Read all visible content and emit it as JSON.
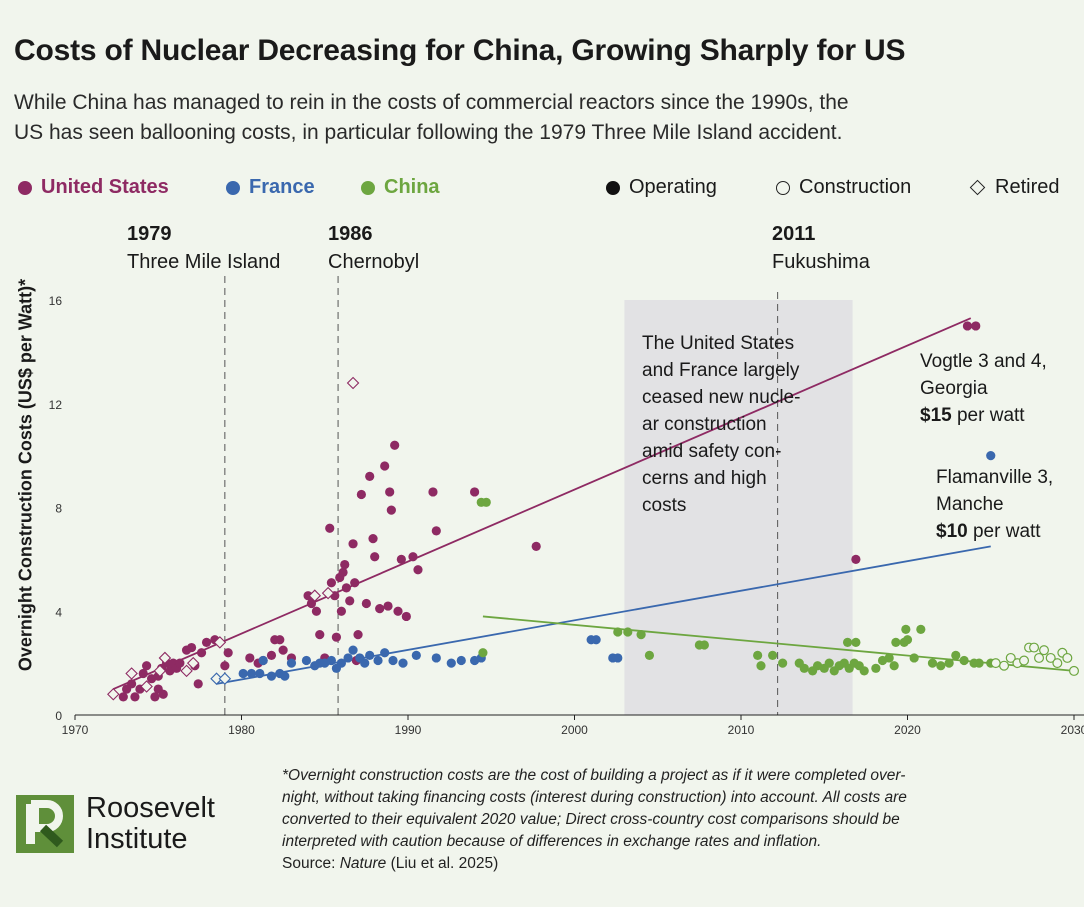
{
  "title": "Costs of Nuclear Decreasing for China, Growing Sharply for US",
  "subtitle_lines": [
    "While China has managed to rein in the costs of commercial reactors since the 1990s, the",
    "US has seen ballooning costs, in particular following the 1979 Three Mile Island accident."
  ],
  "legend": {
    "countries": [
      {
        "label": "United States",
        "color": "#8e2a63"
      },
      {
        "label": "France",
        "color": "#3a68ae"
      },
      {
        "label": "China",
        "color": "#6da640"
      }
    ],
    "status": [
      {
        "label": "Operating",
        "marker": "filled-circle"
      },
      {
        "label": "Construction",
        "marker": "open-circle"
      },
      {
        "label": "Retired",
        "marker": "open-diamond"
      }
    ]
  },
  "events": [
    {
      "year": "1979",
      "name": "Three Mile Island",
      "x": 1979
    },
    {
      "year": "1986",
      "name": "Chernobyl",
      "x": 1985.8
    },
    {
      "year": "2011",
      "name": "Fukushima",
      "x": 2012.2
    }
  ],
  "shaded_annotation_lines": [
    "The United States",
    "and France largely",
    "ceased new nucle-",
    "ar construction",
    "amid safety con-",
    "cerns and high",
    "costs"
  ],
  "callouts": {
    "vogtle": {
      "line1": "Vogtle 3 and 4,",
      "line2": "Georgia",
      "value": "$15",
      "unit": " per watt"
    },
    "flamanville": {
      "line1": "Flamanville 3,",
      "line2": "Manche",
      "value": "$10",
      "unit": " per watt"
    }
  },
  "footnote_lines": [
    "*Overnight construction costs are the cost of building a project as if it were completed over-",
    "night, without taking financing costs (interest during construction) into account. All costs are",
    "converted to their equivalent 2020 value; Direct cross-country cost comparisons should be",
    "interpreted with caution because of differences in exchange rates and inflation."
  ],
  "source": {
    "prefix": "Source: ",
    "publication": "Nature",
    "suffix": " (Liu et al. 2025)"
  },
  "logo": {
    "line1": "Roosevelt",
    "line2": "Institute",
    "color": "#5f8f3a"
  },
  "chart_data": {
    "type": "scatter",
    "ylabel": "Overnight Construction Costs (US$ per Watt)*",
    "xlabel": "",
    "xlim": [
      1970,
      2030
    ],
    "ylim": [
      0,
      16
    ],
    "x_ticks": [
      "1970",
      "1980",
      "1990",
      "2000",
      "2010",
      "2020",
      "2030"
    ],
    "y_ticks": [
      "0",
      "4",
      "8",
      "12",
      "16"
    ],
    "shaded_region": [
      2003,
      2016.7
    ],
    "series": [
      {
        "name": "United States",
        "color": "#8e2a63",
        "trendline": [
          [
            1972.3,
            1.0
          ],
          [
            2023.8,
            15.3
          ]
        ],
        "points": [
          [
            1972.9,
            0.7,
            "o"
          ],
          [
            1973.1,
            1.0,
            "o"
          ],
          [
            1973.4,
            1.2,
            "o"
          ],
          [
            1973.6,
            0.7,
            "o"
          ],
          [
            1973.9,
            1.0,
            "o"
          ],
          [
            1974.1,
            1.6,
            "o"
          ],
          [
            1974.3,
            1.9,
            "o"
          ],
          [
            1974.6,
            1.4,
            "o"
          ],
          [
            1974.8,
            0.7,
            "o"
          ],
          [
            1975.0,
            1.0,
            "o"
          ],
          [
            1975.0,
            1.5,
            "o"
          ],
          [
            1975.2,
            1.8,
            "o"
          ],
          [
            1975.3,
            0.8,
            "o"
          ],
          [
            1975.5,
            2.0,
            "o"
          ],
          [
            1975.7,
            1.7,
            "o"
          ],
          [
            1975.9,
            2.0,
            "o"
          ],
          [
            1976.1,
            1.8,
            "o"
          ],
          [
            1976.3,
            2.0,
            "o"
          ],
          [
            1976.7,
            2.5,
            "o"
          ],
          [
            1977.0,
            2.6,
            "o"
          ],
          [
            1977.2,
            1.9,
            "o"
          ],
          [
            1977.4,
            1.2,
            "o"
          ],
          [
            1977.6,
            2.4,
            "o"
          ],
          [
            1977.9,
            2.8,
            "o"
          ],
          [
            1978.4,
            2.9,
            "o"
          ],
          [
            1979.0,
            1.9,
            "o"
          ],
          [
            1979.2,
            2.4,
            "o"
          ],
          [
            1980.5,
            2.2,
            "o"
          ],
          [
            1981.0,
            2.0,
            "o"
          ],
          [
            1981.3,
            2.1,
            "o"
          ],
          [
            1981.8,
            2.3,
            "o"
          ],
          [
            1982.0,
            2.9,
            "o"
          ],
          [
            1982.3,
            2.9,
            "o"
          ],
          [
            1982.5,
            2.5,
            "o"
          ],
          [
            1983.0,
            2.2,
            "o"
          ],
          [
            1984.0,
            4.6,
            "o"
          ],
          [
            1984.2,
            4.3,
            "o"
          ],
          [
            1984.5,
            4.0,
            "o"
          ],
          [
            1984.7,
            3.1,
            "o"
          ],
          [
            1985.0,
            2.2,
            "o"
          ],
          [
            1985.3,
            7.2,
            "o"
          ],
          [
            1985.4,
            5.1,
            "o"
          ],
          [
            1985.6,
            4.6,
            "o"
          ],
          [
            1985.7,
            3.0,
            "o"
          ],
          [
            1985.9,
            5.3,
            "o"
          ],
          [
            1986.0,
            4.0,
            "o"
          ],
          [
            1986.1,
            5.5,
            "o"
          ],
          [
            1986.2,
            5.8,
            "o"
          ],
          [
            1986.3,
            4.9,
            "o"
          ],
          [
            1986.5,
            4.4,
            "o"
          ],
          [
            1986.7,
            6.6,
            "o"
          ],
          [
            1986.8,
            5.1,
            "o"
          ],
          [
            1986.9,
            2.1,
            "o"
          ],
          [
            1987.0,
            3.1,
            "o"
          ],
          [
            1987.2,
            8.5,
            "o"
          ],
          [
            1987.5,
            4.3,
            "o"
          ],
          [
            1987.7,
            9.2,
            "o"
          ],
          [
            1987.9,
            6.8,
            "o"
          ],
          [
            1988.0,
            6.1,
            "o"
          ],
          [
            1988.3,
            4.1,
            "o"
          ],
          [
            1988.6,
            9.6,
            "o"
          ],
          [
            1988.8,
            4.2,
            "o"
          ],
          [
            1988.9,
            8.6,
            "o"
          ],
          [
            1989.0,
            7.9,
            "o"
          ],
          [
            1989.2,
            10.4,
            "o"
          ],
          [
            1989.4,
            4.0,
            "o"
          ],
          [
            1989.6,
            6.0,
            "o"
          ],
          [
            1989.9,
            3.8,
            "o"
          ],
          [
            1990.3,
            6.1,
            "o"
          ],
          [
            1990.6,
            5.6,
            "o"
          ],
          [
            1991.5,
            8.6,
            "o"
          ],
          [
            1991.7,
            7.1,
            "o"
          ],
          [
            1994.0,
            8.6,
            "o"
          ],
          [
            1997.7,
            6.5,
            "o"
          ],
          [
            2016.9,
            6.0,
            "o"
          ],
          [
            2023.6,
            15.0,
            "o"
          ],
          [
            2024.1,
            15.0,
            "o"
          ],
          [
            1972.3,
            0.8,
            "d"
          ],
          [
            1973.4,
            1.6,
            "d"
          ],
          [
            1974.3,
            1.1,
            "d"
          ],
          [
            1975.1,
            1.7,
            "d"
          ],
          [
            1975.4,
            2.2,
            "d"
          ],
          [
            1976.7,
            1.7,
            "d"
          ],
          [
            1977.1,
            2.0,
            "d"
          ],
          [
            1978.7,
            2.8,
            "d"
          ],
          [
            1984.4,
            4.6,
            "d"
          ],
          [
            1985.2,
            4.7,
            "d"
          ],
          [
            1986.7,
            12.8,
            "d"
          ]
        ]
      },
      {
        "name": "France",
        "color": "#3a68ae",
        "trendline": [
          [
            1978.5,
            1.2
          ],
          [
            2025.0,
            6.5
          ]
        ],
        "points": [
          [
            1980.1,
            1.6,
            "o"
          ],
          [
            1980.6,
            1.6,
            "o"
          ],
          [
            1981.1,
            1.6,
            "o"
          ],
          [
            1981.3,
            2.1,
            "o"
          ],
          [
            1981.8,
            1.5,
            "o"
          ],
          [
            1982.3,
            1.6,
            "o"
          ],
          [
            1982.6,
            1.5,
            "o"
          ],
          [
            1983.0,
            2.0,
            "o"
          ],
          [
            1983.9,
            2.1,
            "o"
          ],
          [
            1984.4,
            1.9,
            "o"
          ],
          [
            1984.7,
            2.0,
            "o"
          ],
          [
            1985.0,
            2.0,
            "o"
          ],
          [
            1985.4,
            2.1,
            "o"
          ],
          [
            1985.7,
            1.8,
            "o"
          ],
          [
            1986.0,
            2.0,
            "o"
          ],
          [
            1986.4,
            2.2,
            "o"
          ],
          [
            1986.7,
            2.5,
            "o"
          ],
          [
            1987.1,
            2.2,
            "o"
          ],
          [
            1987.4,
            2.0,
            "o"
          ],
          [
            1987.7,
            2.3,
            "o"
          ],
          [
            1988.2,
            2.1,
            "o"
          ],
          [
            1988.6,
            2.4,
            "o"
          ],
          [
            1989.1,
            2.1,
            "o"
          ],
          [
            1989.7,
            2.0,
            "o"
          ],
          [
            1990.5,
            2.3,
            "o"
          ],
          [
            1991.7,
            2.2,
            "o"
          ],
          [
            1992.6,
            2.0,
            "o"
          ],
          [
            1993.2,
            2.1,
            "o"
          ],
          [
            1994.0,
            2.1,
            "o"
          ],
          [
            1994.4,
            2.2,
            "o"
          ],
          [
            2001.0,
            2.9,
            "o"
          ],
          [
            2001.3,
            2.9,
            "o"
          ],
          [
            2002.3,
            2.2,
            "o"
          ],
          [
            2002.6,
            2.2,
            "o"
          ],
          [
            2025.0,
            10.0,
            "o"
          ],
          [
            1978.5,
            1.4,
            "d"
          ],
          [
            1979.0,
            1.4,
            "d"
          ]
        ]
      },
      {
        "name": "China",
        "color": "#6da640",
        "trendline": [
          [
            1994.5,
            3.8
          ],
          [
            2030.0,
            1.7
          ]
        ],
        "points": [
          [
            1994.4,
            8.2,
            "o"
          ],
          [
            1994.7,
            8.2,
            "o"
          ],
          [
            1994.5,
            2.4,
            "o"
          ],
          [
            2002.6,
            3.2,
            "o"
          ],
          [
            2003.2,
            3.2,
            "o"
          ],
          [
            2004.0,
            3.1,
            "o"
          ],
          [
            2004.5,
            2.3,
            "o"
          ],
          [
            2007.5,
            2.7,
            "o"
          ],
          [
            2007.8,
            2.7,
            "o"
          ],
          [
            2011.0,
            2.3,
            "o"
          ],
          [
            2011.2,
            1.9,
            "o"
          ],
          [
            2011.9,
            2.3,
            "o"
          ],
          [
            2012.5,
            2.0,
            "o"
          ],
          [
            2013.5,
            2.0,
            "o"
          ],
          [
            2013.8,
            1.8,
            "o"
          ],
          [
            2014.3,
            1.7,
            "o"
          ],
          [
            2014.6,
            1.9,
            "o"
          ],
          [
            2015.0,
            1.8,
            "o"
          ],
          [
            2015.3,
            2.0,
            "o"
          ],
          [
            2015.6,
            1.7,
            "o"
          ],
          [
            2015.9,
            1.9,
            "o"
          ],
          [
            2016.2,
            2.0,
            "o"
          ],
          [
            2016.5,
            1.8,
            "o"
          ],
          [
            2016.8,
            2.0,
            "o"
          ],
          [
            2017.1,
            1.9,
            "o"
          ],
          [
            2017.4,
            1.7,
            "o"
          ],
          [
            2016.4,
            2.8,
            "o"
          ],
          [
            2016.9,
            2.8,
            "o"
          ],
          [
            2018.1,
            1.8,
            "o"
          ],
          [
            2018.5,
            2.1,
            "o"
          ],
          [
            2018.9,
            2.2,
            "o"
          ],
          [
            2019.2,
            1.9,
            "o"
          ],
          [
            2019.3,
            2.8,
            "o"
          ],
          [
            2019.8,
            2.8,
            "o"
          ],
          [
            2019.9,
            3.3,
            "o"
          ],
          [
            2020.0,
            2.9,
            "o"
          ],
          [
            2020.4,
            2.2,
            "o"
          ],
          [
            2020.8,
            3.3,
            "o"
          ],
          [
            2021.5,
            2.0,
            "o"
          ],
          [
            2022.0,
            1.9,
            "o"
          ],
          [
            2022.5,
            2.0,
            "o"
          ],
          [
            2022.9,
            2.3,
            "o"
          ],
          [
            2023.4,
            2.1,
            "o"
          ],
          [
            2024.0,
            2.0,
            "o"
          ],
          [
            2024.3,
            2.0,
            "o"
          ],
          [
            2025.0,
            2.0,
            "o"
          ],
          [
            2025.3,
            2.0,
            "c"
          ],
          [
            2025.8,
            1.9,
            "c"
          ],
          [
            2026.2,
            2.2,
            "c"
          ],
          [
            2026.6,
            2.0,
            "c"
          ],
          [
            2027.0,
            2.1,
            "c"
          ],
          [
            2027.3,
            2.6,
            "c"
          ],
          [
            2027.6,
            2.6,
            "c"
          ],
          [
            2027.9,
            2.2,
            "c"
          ],
          [
            2028.2,
            2.5,
            "c"
          ],
          [
            2028.6,
            2.2,
            "c"
          ],
          [
            2029.0,
            2.0,
            "c"
          ],
          [
            2029.3,
            2.4,
            "c"
          ],
          [
            2029.6,
            2.2,
            "c"
          ],
          [
            2030.0,
            1.7,
            "c"
          ]
        ]
      }
    ]
  }
}
